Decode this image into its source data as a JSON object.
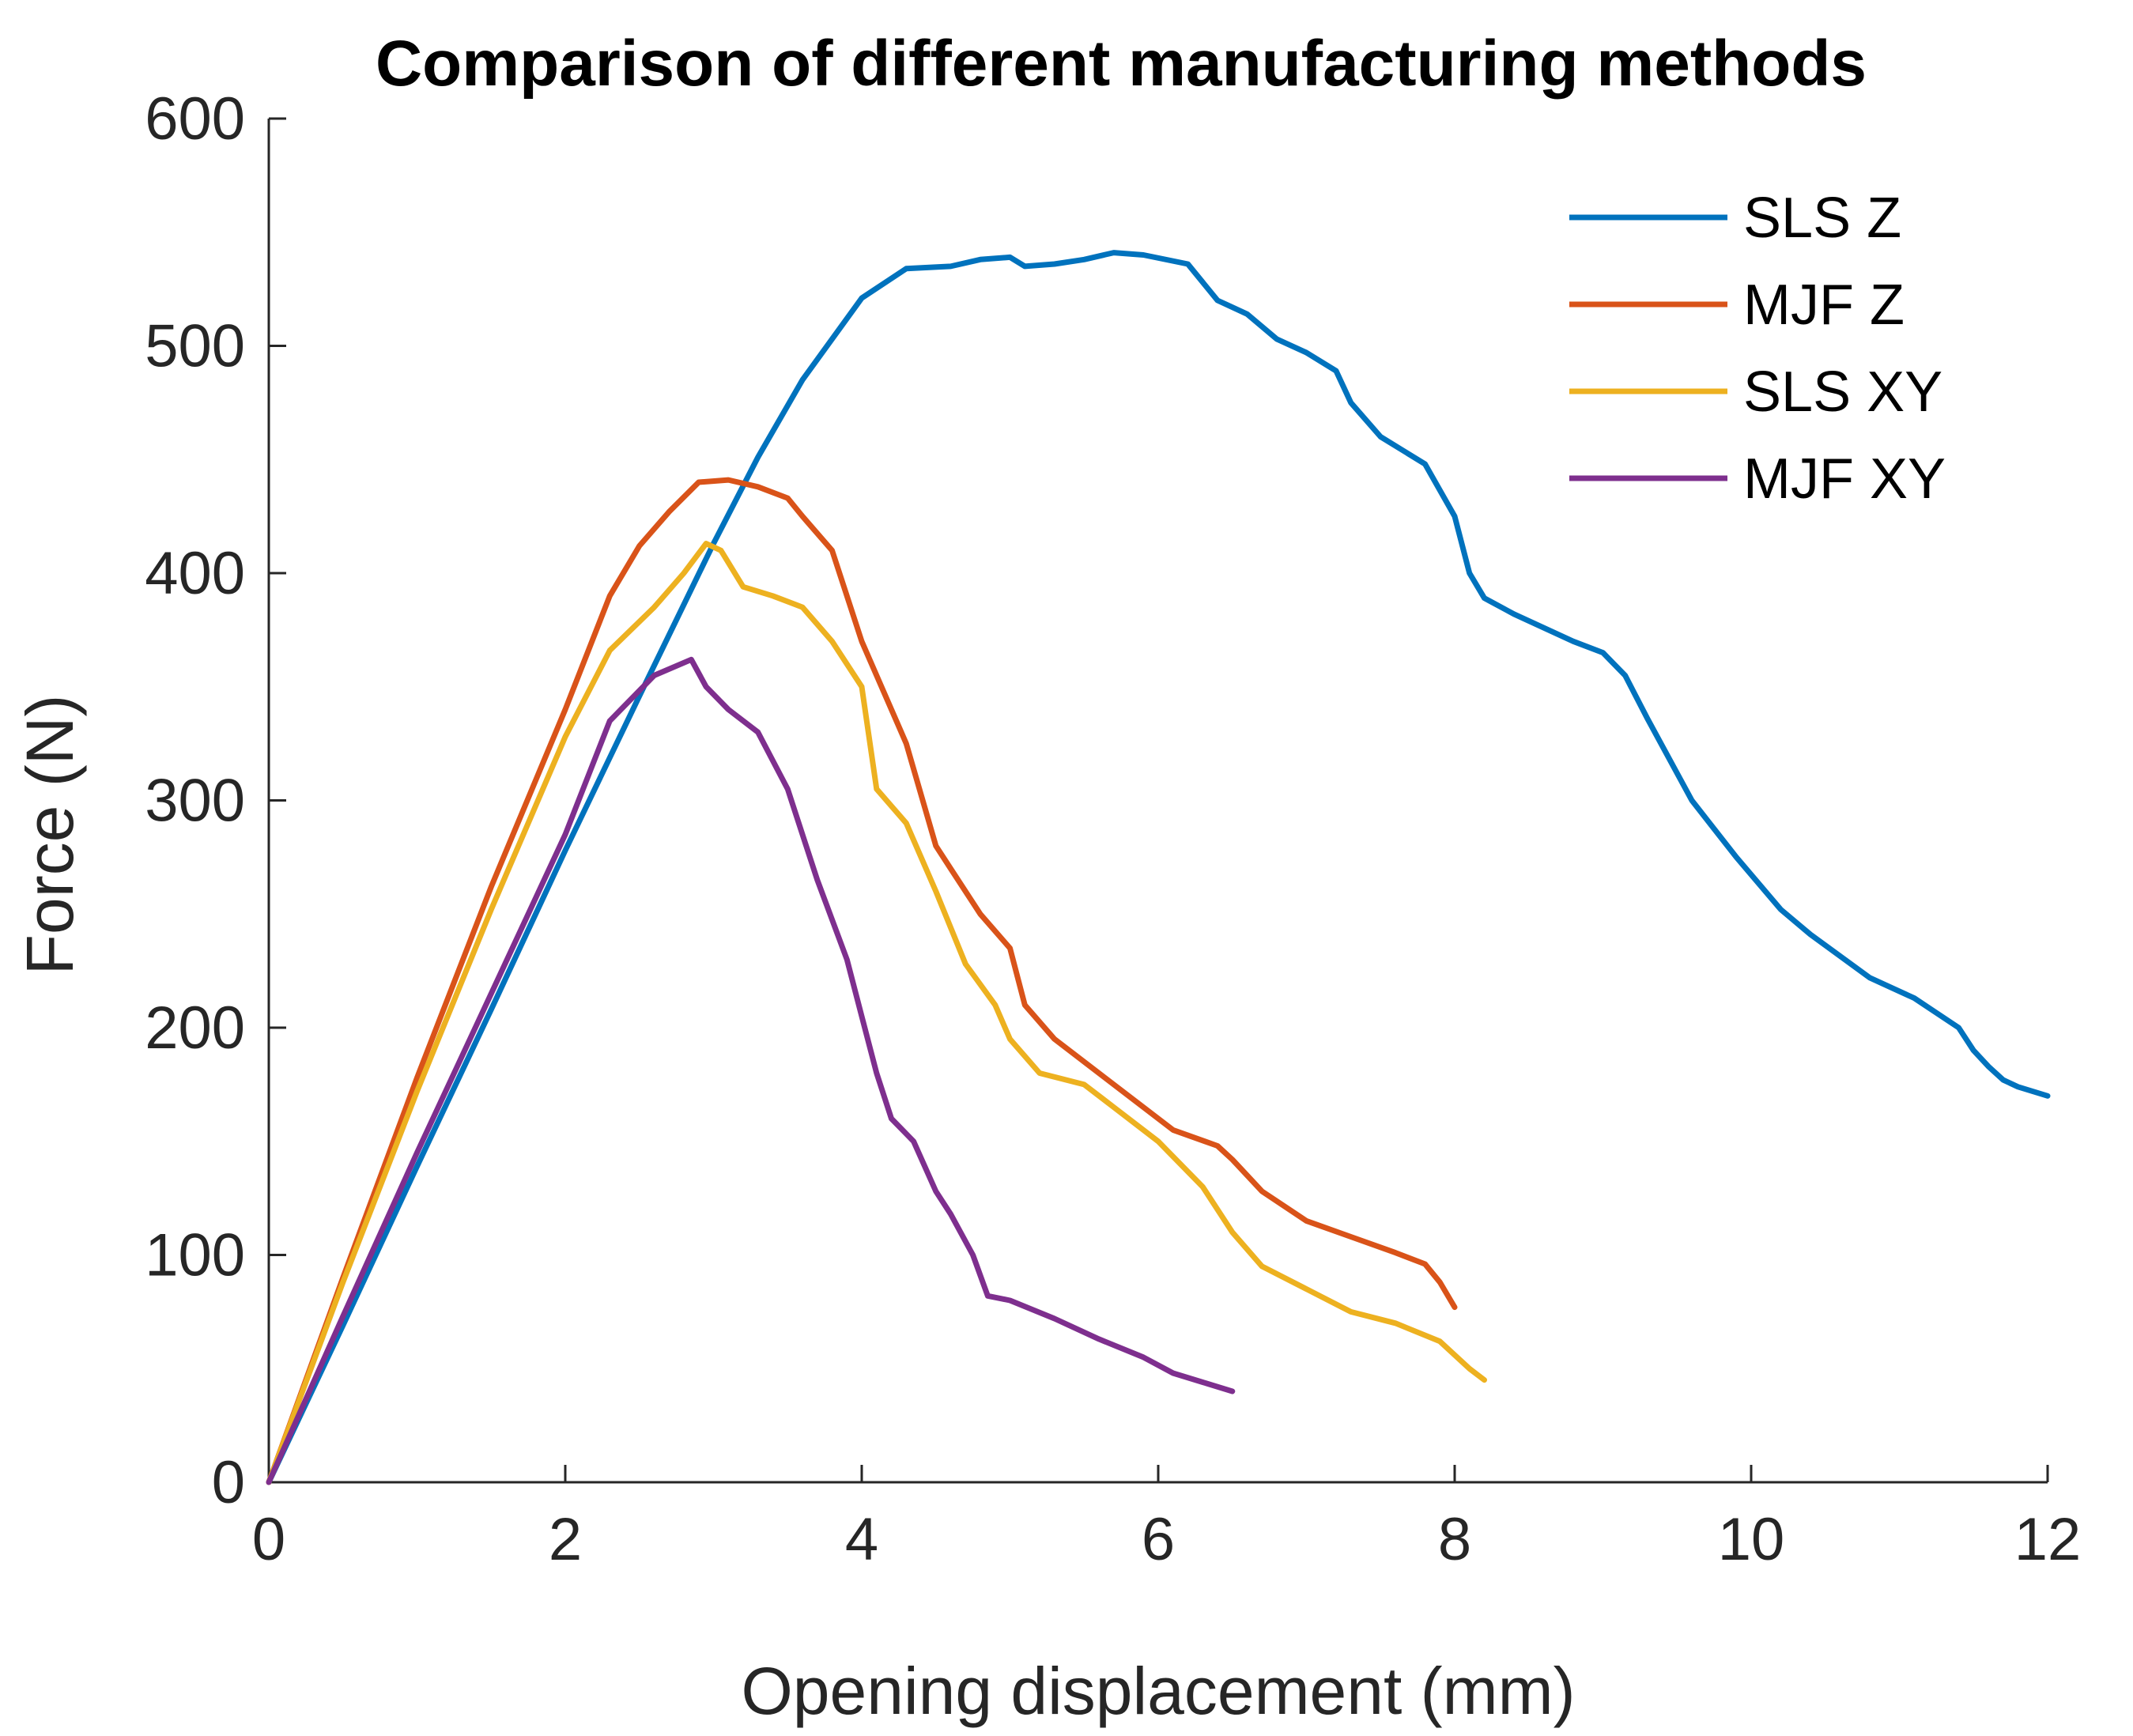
{
  "chart_data": {
    "type": "line",
    "title": "Comparison of different manufacturing methods",
    "xlabel": "Opening displacement (mm)",
    "ylabel": "Force (N)",
    "xlim": [
      0,
      12
    ],
    "ylim": [
      0,
      600
    ],
    "xticks": [
      0,
      2,
      4,
      6,
      8,
      10,
      12
    ],
    "yticks": [
      0,
      100,
      200,
      300,
      400,
      500,
      600
    ],
    "grid": false,
    "legend_position": "top-right",
    "series": [
      {
        "name": "SLS Z",
        "color": "#0072BD",
        "x": [
          0,
          0.5,
          1,
          1.5,
          2,
          2.5,
          3,
          3.3,
          3.6,
          4,
          4.3,
          4.6,
          4.8,
          5.0,
          5.1,
          5.3,
          5.5,
          5.7,
          5.9,
          6.2,
          6.4,
          6.6,
          6.8,
          7.0,
          7.2,
          7.3,
          7.5,
          7.8,
          8.0,
          8.1,
          8.2,
          8.4,
          8.8,
          9.0,
          9.15,
          9.3,
          9.6,
          9.9,
          10.2,
          10.4,
          10.8,
          11.1,
          11.4,
          11.5,
          11.6,
          11.7,
          11.8,
          12.0
        ],
        "y": [
          0,
          69,
          139,
          208,
          278,
          346,
          413,
          451,
          485,
          521,
          534,
          535,
          538,
          539,
          535,
          536,
          538,
          541,
          540,
          536,
          520,
          514,
          503,
          497,
          489,
          475,
          460,
          448,
          425,
          400,
          389,
          382,
          370,
          365,
          355,
          336,
          300,
          275,
          252,
          241,
          222,
          213,
          200,
          190,
          183,
          177,
          174,
          170
        ]
      },
      {
        "name": "MJF Z",
        "color": "#D95319",
        "x": [
          0,
          0.5,
          1,
          1.5,
          2,
          2.3,
          2.5,
          2.7,
          2.9,
          3.1,
          3.3,
          3.5,
          3.6,
          3.8,
          4.0,
          4.3,
          4.5,
          4.6,
          4.8,
          5.0,
          5.1,
          5.3,
          5.6,
          5.9,
          6.1,
          6.4,
          6.5,
          6.7,
          7.0,
          7.3,
          7.6,
          7.8,
          7.9,
          8.0
        ],
        "y": [
          0,
          90,
          178,
          262,
          340,
          390,
          412,
          427,
          440,
          441,
          438,
          433,
          425,
          410,
          370,
          325,
          280,
          270,
          250,
          235,
          210,
          195,
          180,
          165,
          155,
          148,
          142,
          128,
          115,
          108,
          101,
          96,
          88,
          77
        ]
      },
      {
        "name": "SLS XY",
        "color": "#EDB120",
        "x": [
          0,
          0.5,
          1,
          1.5,
          2,
          2.3,
          2.6,
          2.8,
          2.95,
          3.05,
          3.2,
          3.4,
          3.6,
          3.8,
          4.0,
          4.1,
          4.3,
          4.5,
          4.7,
          4.9,
          5.0,
          5.2,
          5.5,
          5.7,
          6.0,
          6.3,
          6.5,
          6.7,
          7.0,
          7.3,
          7.6,
          7.9,
          8.1,
          8.2
        ],
        "y": [
          0,
          88,
          172,
          252,
          328,
          366,
          385,
          400,
          413,
          410,
          394,
          390,
          385,
          370,
          350,
          305,
          290,
          260,
          228,
          210,
          195,
          180,
          175,
          165,
          150,
          130,
          110,
          95,
          85,
          75,
          70,
          62,
          50,
          45
        ]
      },
      {
        "name": "MJF XY",
        "color": "#7E2F8E",
        "x": [
          0,
          0.5,
          1,
          1.5,
          2,
          2.3,
          2.6,
          2.85,
          2.95,
          3.1,
          3.3,
          3.5,
          3.6,
          3.7,
          3.9,
          4.0,
          4.1,
          4.2,
          4.35,
          4.5,
          4.6,
          4.75,
          4.85,
          5.0,
          5.3,
          5.6,
          5.9,
          6.1,
          6.3,
          6.5
        ],
        "y": [
          0,
          73,
          145,
          215,
          285,
          335,
          355,
          362,
          350,
          340,
          330,
          305,
          285,
          265,
          230,
          205,
          180,
          160,
          150,
          128,
          118,
          100,
          82,
          80,
          72,
          63,
          55,
          48,
          44,
          40
        ]
      }
    ]
  }
}
